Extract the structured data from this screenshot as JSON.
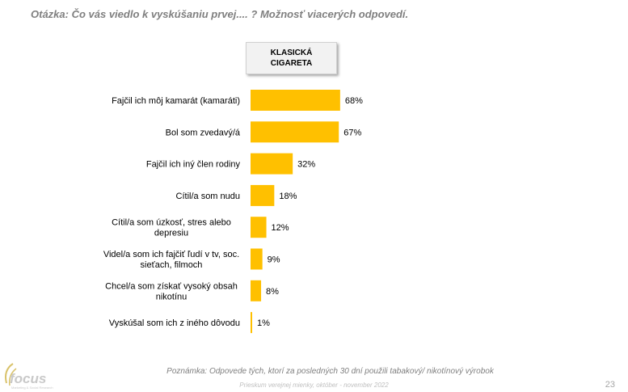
{
  "question": "Otázka: Čo vás viedlo k vyskúšaniu prvej.... ? Možnosť viacerých odpovedí.",
  "column_header": [
    "KLASICKÁ",
    "CIGARETA"
  ],
  "note": "Poznámka: Odpovede tých, ktorí za posledných 30 dní použili tabakový/ nikotínový výrobok",
  "survey": "Prieskum verejnej mienky, október - november 2022",
  "page_number": "23",
  "logo": {
    "text": "focus",
    "tagline": "Marketing & Social Research"
  },
  "colors": {
    "bar": "#ffc000",
    "text": "#000000",
    "muted": "#7f7f7f"
  },
  "chart_data": {
    "type": "bar",
    "orientation": "horizontal",
    "categories": [
      [
        "Fajčil ich môj kamarát (kamaráti)"
      ],
      [
        "Bol som zvedavý/á"
      ],
      [
        "Fajčil ich iný člen rodiny"
      ],
      [
        "Cítil/a som nudu"
      ],
      [
        "Cítil/a som úzkosť, stres alebo",
        "depresiu"
      ],
      [
        "Videl/a som ich fajčiť ľudí v tv, soc.",
        "sieťach, filmoch"
      ],
      [
        "Chcel/a som získať vysoký obsah",
        "nikotínu"
      ],
      [
        "Vyskúšal som ich z iného dôvodu"
      ]
    ],
    "values": [
      68,
      67,
      32,
      18,
      12,
      9,
      8,
      1
    ],
    "value_labels": [
      "68%",
      "67%",
      "32%",
      "18%",
      "12%",
      "9%",
      "8%",
      "1%"
    ],
    "xlim": [
      0,
      100
    ],
    "grid": false,
    "legend": "none"
  }
}
